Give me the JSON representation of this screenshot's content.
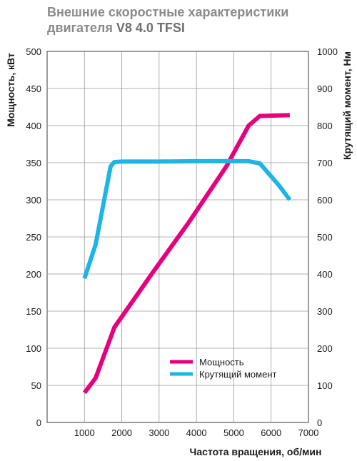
{
  "chart_data": {
    "type": "line",
    "title_line1": "Внешние скоростные характеристики",
    "title_line2_prefix": "двигателя",
    "title_line2_bold": "V8 4.0 TFSI",
    "xlabel": "Частота вращения, об/мин",
    "ylabel_left": "Мощность, кВт",
    "ylabel_right": "Крутящий момент, Нм",
    "xlim": [
      0,
      7000
    ],
    "ylim_left": [
      0,
      500
    ],
    "ylim_right": [
      0,
      1000
    ],
    "x_ticks": [
      1000,
      2000,
      3000,
      4000,
      5000,
      6000,
      7000
    ],
    "y_ticks_left": [
      0,
      50,
      100,
      150,
      200,
      250,
      300,
      350,
      400,
      450,
      500
    ],
    "y_ticks_right": [
      0,
      100,
      200,
      300,
      400,
      500,
      600,
      700,
      800,
      900,
      1000
    ],
    "grid": true,
    "legend_position": "bottom-right",
    "series": [
      {
        "name": "Мощность",
        "axis": "left",
        "color": "#e6007e",
        "x": [
          1000,
          1300,
          1800,
          2800,
          3800,
          4800,
          5400,
          5700,
          6500
        ],
        "y": [
          40,
          60,
          128,
          200,
          270,
          345,
          400,
          413,
          414
        ]
      },
      {
        "name": "Крутящий момент",
        "axis": "right",
        "color": "#1eb4e6",
        "x": [
          1000,
          1300,
          1700,
          1800,
          2000,
          3000,
          4000,
          5000,
          5400,
          5700,
          6200,
          6500
        ],
        "y": [
          388,
          480,
          690,
          702,
          703,
          703,
          704,
          704,
          704,
          698,
          640,
          600
        ]
      }
    ]
  }
}
